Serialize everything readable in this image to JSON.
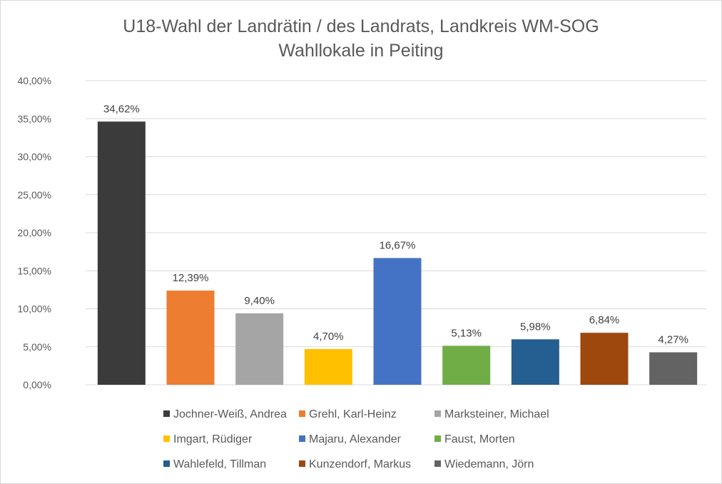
{
  "chart_data": {
    "type": "bar",
    "title": "U18-Wahl der Landrätin / des Landrats, Landkreis WM-SOG",
    "subtitle": "Wahllokale in Peiting",
    "categories": [
      "Jochner-Weiß, Andrea",
      "Grehl, Karl-Heinz",
      "Marksteiner, Michael",
      "Imgart, Rüdiger",
      "Majaru, Alexander",
      "Faust, Morten",
      "Wahlefeld, Tillman",
      "Kunzendorf, Markus",
      "Wiedemann, Jörn"
    ],
    "values": [
      34.62,
      12.39,
      9.4,
      4.7,
      16.67,
      5.13,
      5.98,
      6.84,
      4.27
    ],
    "value_labels": [
      "34,62%",
      "12,39%",
      "9,40%",
      "4,70%",
      "16,67%",
      "5,13%",
      "5,98%",
      "6,84%",
      "4,27%"
    ],
    "colors": [
      "#3b3b3b",
      "#ed7d31",
      "#a5a5a5",
      "#ffc000",
      "#4472c4",
      "#70ad47",
      "#255e91",
      "#9e480e",
      "#636363"
    ],
    "ylim": [
      0,
      40
    ],
    "yticks": [
      0,
      5,
      10,
      15,
      20,
      25,
      30,
      35,
      40
    ],
    "ytick_labels": [
      "0,00%",
      "5,00%",
      "10,00%",
      "15,00%",
      "20,00%",
      "25,00%",
      "30,00%",
      "35,00%",
      "40,00%"
    ],
    "grid": true,
    "legend_position": "bottom",
    "xlabel": "",
    "ylabel": ""
  }
}
